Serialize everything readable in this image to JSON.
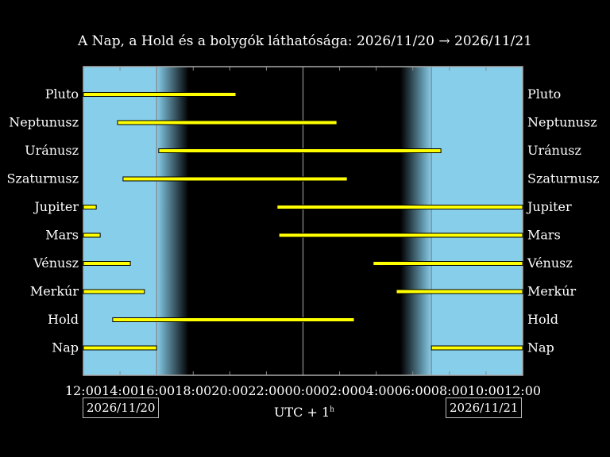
{
  "title": "A Nap, a Hold és a bolygók láthatósága: 2026/11/20 → 2026/11/21",
  "timezone_label": "UTC + 1",
  "timezone_sup": "h",
  "date_start": "2026/11/20",
  "date_end": "2026/11/21",
  "colors": {
    "day": "#87ceeb",
    "night": "#000000",
    "bar": "#ffff00",
    "bar_edge": "#000000",
    "grid": "#aaaaaa"
  },
  "chart_data": {
    "type": "gantt",
    "title": "A Nap, a Hold és a bolygók láthatósága: 2026/11/20 → 2026/11/21",
    "xlabel": "UTC + 1h",
    "x_unit": "hours since 2026/11/20 12:00 local",
    "xlim": [
      0,
      24
    ],
    "x_ticks": [
      "12:00",
      "14:00",
      "16:00",
      "18:00",
      "20:00",
      "22:00",
      "00:00",
      "02:00",
      "04:00",
      "06:00",
      "08:00",
      "10:00",
      "12:00"
    ],
    "sunset": "16:00",
    "dusk_end": "17:45",
    "dawn_start": "05:20",
    "sunrise": "07:01",
    "bodies": [
      {
        "name": "Pluto",
        "intervals": [
          [
            "12:00",
            "20:20"
          ]
        ]
      },
      {
        "name": "Neptunusz",
        "intervals": [
          [
            "13:52",
            "01:51"
          ]
        ]
      },
      {
        "name": "Uránusz",
        "intervals": [
          [
            "16:07",
            "07:32"
          ]
        ]
      },
      {
        "name": "Szaturnusz",
        "intervals": [
          [
            "14:10",
            "02:25"
          ]
        ]
      },
      {
        "name": "Jupiter",
        "intervals": [
          [
            "12:00",
            "12:42"
          ],
          [
            "22:35",
            "12:00"
          ]
        ]
      },
      {
        "name": "Mars",
        "intervals": [
          [
            "12:00",
            "12:55"
          ],
          [
            "22:41",
            "12:00"
          ]
        ]
      },
      {
        "name": "Vénusz",
        "intervals": [
          [
            "12:00",
            "14:34"
          ],
          [
            "03:50",
            "12:00"
          ]
        ]
      },
      {
        "name": "Merkúr",
        "intervals": [
          [
            "12:00",
            "15:20"
          ],
          [
            "05:06",
            "12:00"
          ]
        ]
      },
      {
        "name": "Hold",
        "intervals": [
          [
            "13:36",
            "02:48"
          ]
        ]
      },
      {
        "name": "Nap",
        "intervals": [
          [
            "12:00",
            "16:00"
          ],
          [
            "07:01",
            "12:00"
          ]
        ]
      }
    ]
  }
}
